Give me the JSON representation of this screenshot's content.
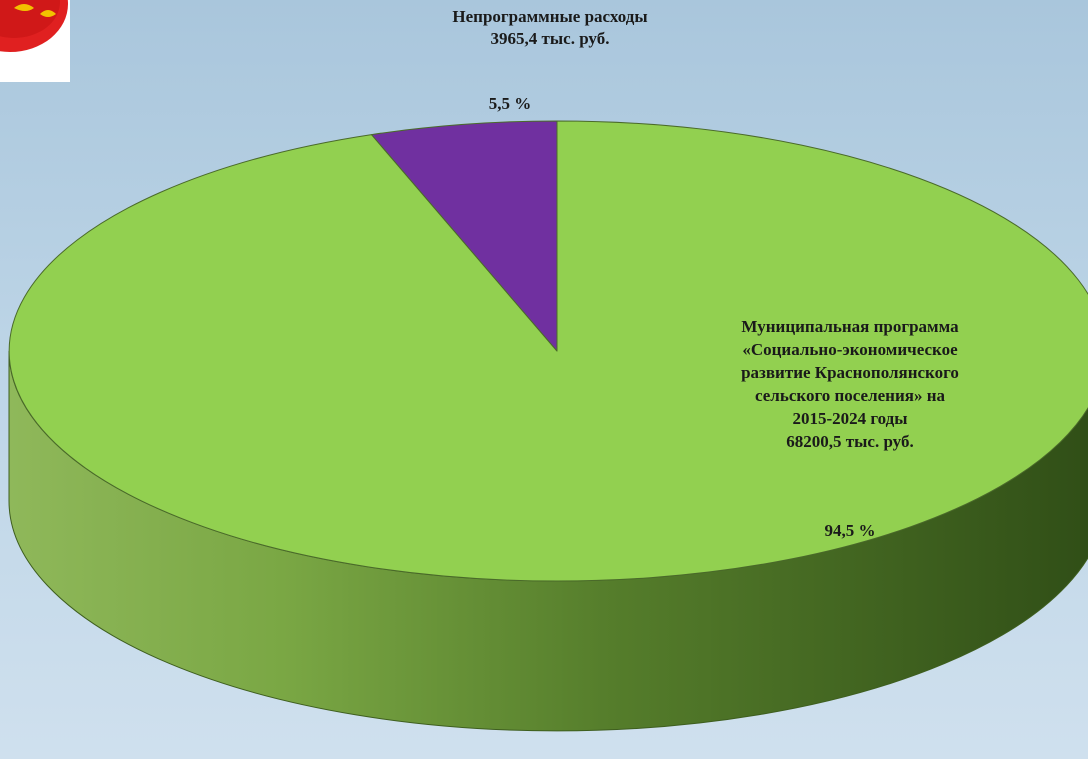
{
  "chart_data": {
    "type": "pie",
    "title": "",
    "unit": "тыс. руб.",
    "slices": [
      {
        "name": "Непрограммные расходы",
        "value": 3965.4,
        "value_label": "3965,4 тыс. руб.",
        "percent": 5.5,
        "percent_label": "5,5 %",
        "color": "#7030a0"
      },
      {
        "name": "Муниципальная программа «Социально-экономическое развитие Краснополянского сельского поселения» на 2015-2024 годы",
        "value": 68200.5,
        "value_label": "68200,5 тыс. руб.",
        "percent": 94.5,
        "percent_label": "94,5 %",
        "color": "#92d050"
      }
    ],
    "labels": {
      "nonprog": "Непрограммные расходы\n3965,4 тыс. руб.",
      "municipal": "Муниципальная программа\n«Социально-экономическое\nразвитие Краснополянского\nсельского поселения» на\n2015-2024 годы\n68200,5 тыс. руб."
    },
    "style": "3d-pie",
    "legend": "none"
  },
  "logo": {
    "icon": "coat-of-arms-icon",
    "accent": "#e02020"
  }
}
